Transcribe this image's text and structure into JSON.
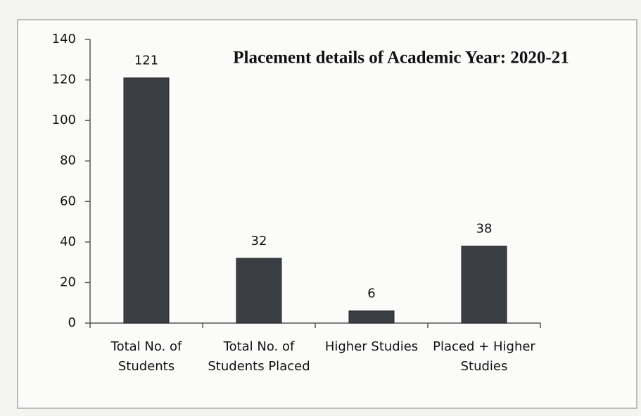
{
  "chart_data": {
    "type": "bar",
    "title": "Placement details of Academic Year:  2020-21",
    "categories": [
      "Total No. of Students",
      "Total No. of Students Placed",
      "Higher Studies",
      "Placed + Higher Studies"
    ],
    "values": [
      121,
      32,
      6,
      38
    ],
    "color": "#3b3e44",
    "ylim": [
      0,
      140
    ],
    "yticks": [
      0,
      20,
      40,
      60,
      80,
      100,
      120,
      140
    ],
    "grid": false
  }
}
